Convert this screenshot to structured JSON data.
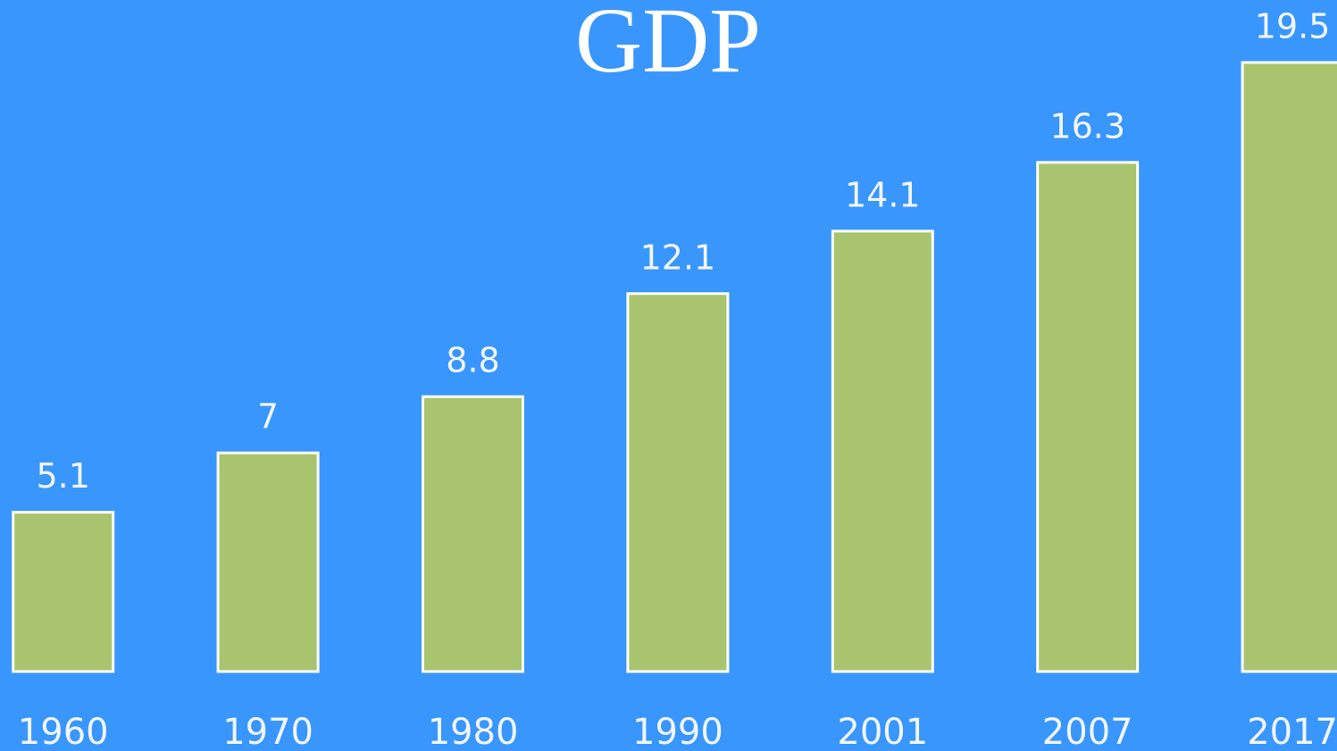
{
  "chart_data": {
    "type": "bar",
    "title": "GDP",
    "categories": [
      "1960",
      "1970",
      "1980",
      "1990",
      "2001",
      "2007",
      "2017"
    ],
    "values": [
      5.1,
      7,
      8.8,
      12.1,
      14.1,
      16.3,
      19.5
    ],
    "color": "#a9c46e",
    "ylim": [
      0,
      21.5
    ]
  }
}
